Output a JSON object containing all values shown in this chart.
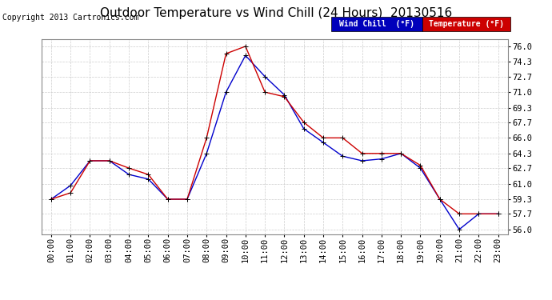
{
  "title": "Outdoor Temperature vs Wind Chill (24 Hours)  20130516",
  "copyright": "Copyright 2013 Cartronics.com",
  "background_color": "#ffffff",
  "plot_bg_color": "#ffffff",
  "grid_color": "#cccccc",
  "yticks": [
    56.0,
    57.7,
    59.3,
    61.0,
    62.7,
    64.3,
    66.0,
    67.7,
    69.3,
    71.0,
    72.7,
    74.3,
    76.0
  ],
  "ylim": [
    55.5,
    76.8
  ],
  "hours": [
    "00:00",
    "01:00",
    "02:00",
    "03:00",
    "04:00",
    "05:00",
    "06:00",
    "07:00",
    "08:00",
    "09:00",
    "10:00",
    "11:00",
    "12:00",
    "13:00",
    "14:00",
    "15:00",
    "16:00",
    "17:00",
    "18:00",
    "19:00",
    "20:00",
    "21:00",
    "22:00",
    "23:00"
  ],
  "temperature": [
    59.3,
    60.0,
    63.5,
    63.5,
    62.7,
    62.0,
    59.3,
    59.3,
    66.0,
    75.2,
    76.0,
    71.0,
    70.5,
    67.7,
    66.0,
    66.0,
    64.3,
    64.3,
    64.3,
    63.0,
    59.3,
    57.7,
    57.7,
    57.7
  ],
  "wind_chill": [
    59.3,
    60.8,
    63.5,
    63.5,
    62.0,
    61.5,
    59.3,
    59.3,
    64.3,
    71.0,
    75.0,
    72.7,
    70.7,
    67.0,
    65.5,
    64.0,
    63.5,
    63.7,
    64.3,
    62.7,
    59.3,
    56.0,
    57.7,
    57.7
  ],
  "temp_color": "#cc0000",
  "wind_color": "#0000cc",
  "legend_wind_bg": "#0000bb",
  "legend_temp_bg": "#cc0000",
  "title_fontsize": 11,
  "tick_fontsize": 7.5,
  "copyright_fontsize": 7
}
